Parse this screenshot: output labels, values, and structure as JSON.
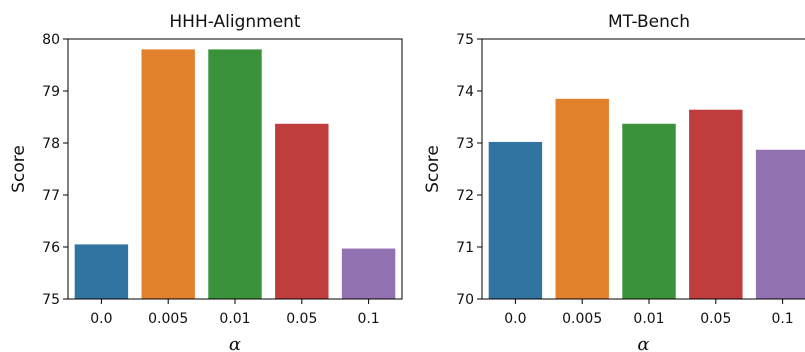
{
  "chart_data": [
    {
      "type": "bar",
      "title": "HHH-Alignment",
      "xlabel": "α",
      "ylabel": "Score",
      "categories": [
        "0.0",
        "0.005",
        "0.01",
        "0.05",
        "0.1"
      ],
      "values": [
        76.05,
        79.8,
        79.8,
        78.37,
        75.97
      ],
      "ylim": [
        75,
        80
      ],
      "yticks": [
        "75",
        "76",
        "77",
        "78",
        "79",
        "80"
      ],
      "colors": [
        "#3274a1",
        "#e1812c",
        "#3a923a",
        "#c03d3e",
        "#9372b2"
      ],
      "grid": false,
      "legend": "none"
    },
    {
      "type": "bar",
      "title": "MT-Bench",
      "xlabel": "α",
      "ylabel": "Score",
      "categories": [
        "0.0",
        "0.005",
        "0.01",
        "0.05",
        "0.1"
      ],
      "values": [
        73.02,
        73.85,
        73.37,
        73.64,
        72.87
      ],
      "ylim": [
        70,
        75
      ],
      "yticks": [
        "70",
        "71",
        "72",
        "73",
        "74",
        "75"
      ],
      "colors": [
        "#3274a1",
        "#e1812c",
        "#3a923a",
        "#c03d3e",
        "#9372b2"
      ],
      "grid": false,
      "legend": "none"
    }
  ]
}
